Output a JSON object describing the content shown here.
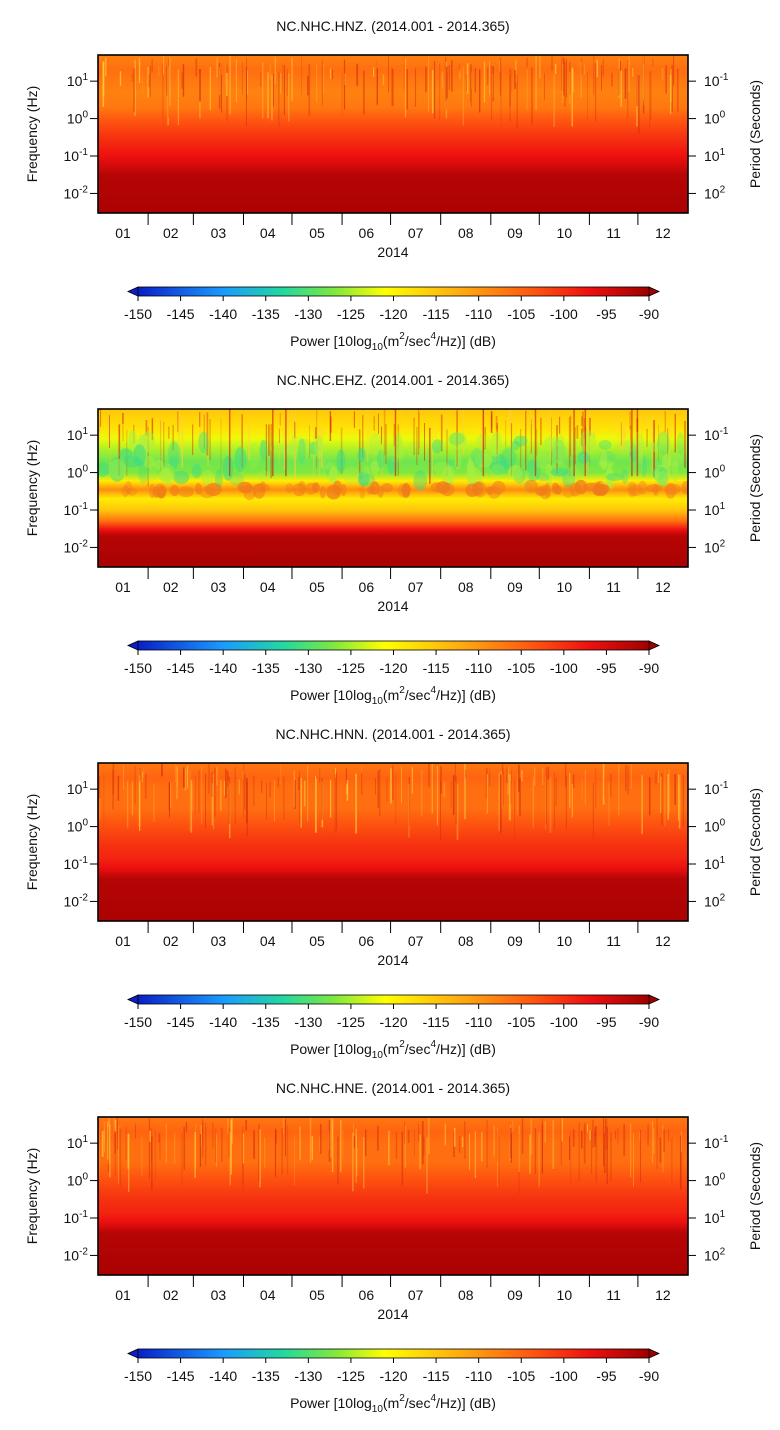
{
  "colorbar": {
    "min": -150,
    "max": -90,
    "ticks": [
      "-150",
      "-145",
      "-140",
      "-135",
      "-130",
      "-125",
      "-120",
      "-115",
      "-110",
      "-105",
      "-100",
      "-95",
      "-90"
    ],
    "label_prefix": "Power [10log",
    "label_sub": "10",
    "label_mid1": "(m",
    "label_sup1": "2",
    "label_mid2": "/sec",
    "label_sup2": "4",
    "label_suffix": "/Hz)] (dB)",
    "stops": [
      {
        "v": -150,
        "color": "#0a1fc8"
      },
      {
        "v": -140,
        "color": "#1a9bff"
      },
      {
        "v": -133,
        "color": "#22d8a0"
      },
      {
        "v": -127,
        "color": "#7ee840"
      },
      {
        "v": -121,
        "color": "#ffff00"
      },
      {
        "v": -112,
        "color": "#ffaa10"
      },
      {
        "v": -104,
        "color": "#ff5a10"
      },
      {
        "v": -97,
        "color": "#ee1010"
      },
      {
        "v": -90,
        "color": "#a00000"
      }
    ]
  },
  "chart_data": [
    {
      "type": "heatmap",
      "title": "NC.NHC.HNZ. (2014.001 - 2014.365)",
      "xlabel": "2014",
      "ylabel": "Frequency (Hz)",
      "ylabel_right": "Period (Seconds)",
      "x_ticks": [
        "01",
        "02",
        "03",
        "04",
        "05",
        "06",
        "07",
        "08",
        "09",
        "10",
        "11",
        "12"
      ],
      "y_ticks": [
        {
          "base": "10",
          "exp": "1",
          "value": 10
        },
        {
          "base": "10",
          "exp": "0",
          "value": 1
        },
        {
          "base": "10",
          "exp": "-1",
          "value": 0.1
        },
        {
          "base": "10",
          "exp": "-2",
          "value": 0.01
        }
      ],
      "y_ticks_right": [
        {
          "base": "10",
          "exp": "-1",
          "value": 0.1
        },
        {
          "base": "10",
          "exp": "0",
          "value": 1
        },
        {
          "base": "10",
          "exp": "1",
          "value": 10
        },
        {
          "base": "10",
          "exp": "2",
          "value": 100
        }
      ],
      "y_scale": "log",
      "ylim_hz": [
        0.003,
        50
      ],
      "profile": {
        "freq_hz": [
          0.003,
          0.03,
          0.06,
          0.1,
          0.2,
          0.4,
          1,
          2,
          5,
          10,
          20,
          50
        ],
        "power_db": [
          -91,
          -92,
          -95,
          -97,
          -99,
          -101,
          -104,
          -107,
          -108,
          -107,
          -106,
          -108
        ]
      }
    },
    {
      "type": "heatmap",
      "title": "NC.NHC.EHZ. (2014.001 - 2014.365)",
      "xlabel": "2014",
      "ylabel": "Frequency (Hz)",
      "ylabel_right": "Period (Seconds)",
      "x_ticks": [
        "01",
        "02",
        "03",
        "04",
        "05",
        "06",
        "07",
        "08",
        "09",
        "10",
        "11",
        "12"
      ],
      "y_ticks": [
        {
          "base": "10",
          "exp": "1",
          "value": 10
        },
        {
          "base": "10",
          "exp": "0",
          "value": 1
        },
        {
          "base": "10",
          "exp": "-1",
          "value": 0.1
        },
        {
          "base": "10",
          "exp": "-2",
          "value": 0.01
        }
      ],
      "y_ticks_right": [
        {
          "base": "10",
          "exp": "-1",
          "value": 0.1
        },
        {
          "base": "10",
          "exp": "0",
          "value": 1
        },
        {
          "base": "10",
          "exp": "1",
          "value": 10
        },
        {
          "base": "10",
          "exp": "2",
          "value": 100
        }
      ],
      "y_scale": "log",
      "ylim_hz": [
        0.003,
        50
      ],
      "profile": {
        "freq_hz": [
          0.003,
          0.02,
          0.03,
          0.05,
          0.1,
          0.2,
          0.35,
          0.6,
          1,
          2,
          4,
          8,
          15,
          50
        ],
        "power_db": [
          -91,
          -92,
          -97,
          -106,
          -115,
          -119,
          -109,
          -119,
          -127,
          -128,
          -125,
          -122,
          -118,
          -115
        ]
      }
    },
    {
      "type": "heatmap",
      "title": "NC.NHC.HNN. (2014.001 - 2014.365)",
      "xlabel": "2014",
      "ylabel": "Frequency (Hz)",
      "ylabel_right": "Period (Seconds)",
      "x_ticks": [
        "01",
        "02",
        "03",
        "04",
        "05",
        "06",
        "07",
        "08",
        "09",
        "10",
        "11",
        "12"
      ],
      "y_ticks": [
        {
          "base": "10",
          "exp": "1",
          "value": 10
        },
        {
          "base": "10",
          "exp": "0",
          "value": 1
        },
        {
          "base": "10",
          "exp": "-1",
          "value": 0.1
        },
        {
          "base": "10",
          "exp": "-2",
          "value": 0.01
        }
      ],
      "y_ticks_right": [
        {
          "base": "10",
          "exp": "-1",
          "value": 0.1
        },
        {
          "base": "10",
          "exp": "0",
          "value": 1
        },
        {
          "base": "10",
          "exp": "1",
          "value": 10
        },
        {
          "base": "10",
          "exp": "2",
          "value": 100
        }
      ],
      "y_scale": "log",
      "ylim_hz": [
        0.003,
        50
      ],
      "profile": {
        "freq_hz": [
          0.003,
          0.04,
          0.08,
          0.15,
          0.3,
          1,
          3,
          10,
          20,
          50
        ],
        "power_db": [
          -91,
          -92,
          -97,
          -99,
          -100,
          -103,
          -106,
          -106,
          -105,
          -107
        ]
      }
    },
    {
      "type": "heatmap",
      "title": "NC.NHC.HNE. (2014.001 - 2014.365)",
      "xlabel": "2014",
      "ylabel": "Frequency (Hz)",
      "ylabel_right": "Period (Seconds)",
      "x_ticks": [
        "01",
        "02",
        "03",
        "04",
        "05",
        "06",
        "07",
        "08",
        "09",
        "10",
        "11",
        "12"
      ],
      "y_ticks": [
        {
          "base": "10",
          "exp": "1",
          "value": 10
        },
        {
          "base": "10",
          "exp": "0",
          "value": 1
        },
        {
          "base": "10",
          "exp": "-1",
          "value": 0.1
        },
        {
          "base": "10",
          "exp": "-2",
          "value": 0.01
        }
      ],
      "y_ticks_right": [
        {
          "base": "10",
          "exp": "-1",
          "value": 0.1
        },
        {
          "base": "10",
          "exp": "0",
          "value": 1
        },
        {
          "base": "10",
          "exp": "1",
          "value": 10
        },
        {
          "base": "10",
          "exp": "2",
          "value": 100
        }
      ],
      "y_scale": "log",
      "ylim_hz": [
        0.003,
        50
      ],
      "profile": {
        "freq_hz": [
          0.003,
          0.04,
          0.08,
          0.15,
          0.3,
          1,
          3,
          10,
          20,
          50
        ],
        "power_db": [
          -91,
          -92,
          -97,
          -99,
          -100,
          -103,
          -106,
          -106,
          -105,
          -107
        ]
      }
    }
  ]
}
